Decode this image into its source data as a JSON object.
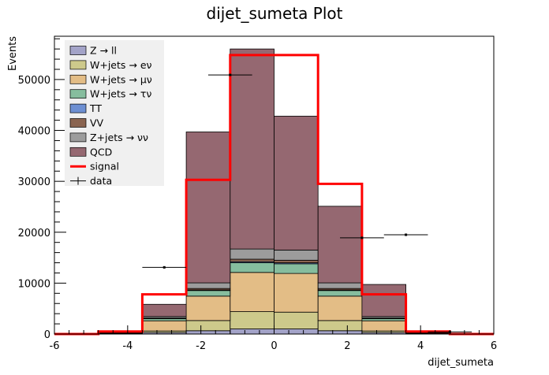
{
  "chart_data": {
    "type": "bar",
    "title": "dijet_sumeta Plot",
    "xlabel": "dijet_sumeta",
    "ylabel": "Events",
    "xlim": [
      -6,
      6
    ],
    "ylim": [
      0,
      58500
    ],
    "x_ticks": [
      "-6",
      "-4",
      "-2",
      "0",
      "2",
      "4",
      "6"
    ],
    "x_tick_values": [
      -6,
      -4,
      -2,
      0,
      2,
      4,
      6
    ],
    "y_ticks": [
      "0",
      "10000",
      "20000",
      "30000",
      "40000",
      "50000"
    ],
    "y_tick_values": [
      0,
      10000,
      20000,
      30000,
      40000,
      50000
    ],
    "bin_edges": [
      -6,
      -4.8,
      -3.6,
      -2.4,
      -1.2,
      0,
      1.2,
      2.4,
      3.6,
      4.8,
      6
    ],
    "stack": [
      {
        "name": "Z → ll",
        "color": "#a3a3c8",
        "values": [
          0,
          80,
          300,
          650,
          1000,
          1000,
          650,
          300,
          80,
          0
        ]
      },
      {
        "name": "W+jets → eν",
        "color": "#cdc98b",
        "values": [
          0,
          100,
          300,
          2000,
          3400,
          3300,
          2000,
          300,
          100,
          0
        ]
      },
      {
        "name": "W+jets → μν",
        "color": "#e3bd86",
        "values": [
          0,
          120,
          2000,
          4800,
          7700,
          7600,
          4800,
          2000,
          120,
          0
        ]
      },
      {
        "name": "W+jets → τν",
        "color": "#86bd9e",
        "values": [
          0,
          30,
          400,
          1100,
          1900,
          1900,
          1100,
          400,
          30,
          0
        ]
      },
      {
        "name": "TT",
        "color": "#6d8fd2",
        "values": [
          0,
          5,
          40,
          120,
          200,
          200,
          120,
          40,
          5,
          0
        ]
      },
      {
        "name": "VV",
        "color": "#8a6450",
        "values": [
          0,
          10,
          100,
          280,
          500,
          500,
          280,
          100,
          10,
          0
        ]
      },
      {
        "name": "Z+jets → νν",
        "color": "#9c9c9c",
        "values": [
          0,
          35,
          300,
          1100,
          2000,
          2000,
          1100,
          300,
          35,
          0
        ]
      },
      {
        "name": "QCD",
        "color": "#956871",
        "values": [
          0,
          200,
          2400,
          29650,
          39300,
          26300,
          15050,
          6300,
          200,
          0
        ]
      }
    ],
    "signal": {
      "name": "signal",
      "color": "#ff0000",
      "values": [
        0,
        500,
        7800,
        30300,
        54800,
        54800,
        29500,
        7800,
        500,
        0
      ]
    },
    "data": {
      "name": "data",
      "x": [
        -3,
        -1.2,
        2.4,
        3.6,
        4.8
      ],
      "y": [
        13100,
        50900,
        18900,
        19500,
        400
      ],
      "xerr": [
        0.6,
        0.6,
        0.6,
        0.6,
        0.6
      ]
    },
    "legend": [
      "Z → ll",
      "W+jets → eν",
      "W+jets → μν",
      "W+jets → τν",
      "TT",
      "VV",
      "Z+jets → νν",
      "QCD",
      "signal",
      "data"
    ],
    "legend_position": "top-left"
  }
}
